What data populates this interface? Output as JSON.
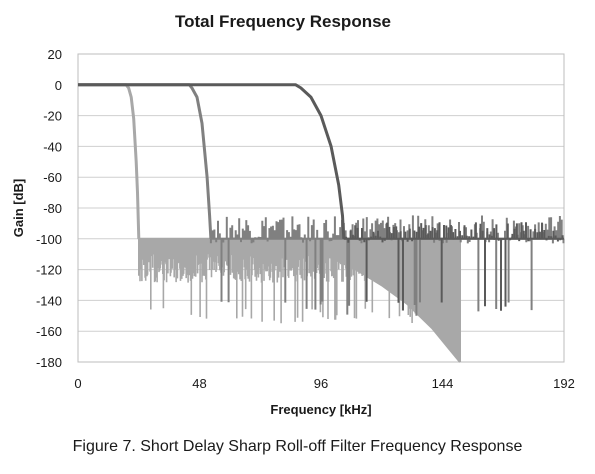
{
  "chart_data": {
    "type": "line",
    "title": "Total Frequency Response",
    "xlabel": "Frequency [kHz]",
    "ylabel": "Gain [dB]",
    "xlim": [
      0,
      192
    ],
    "ylim": [
      -180,
      20
    ],
    "x_ticks": [
      0,
      48,
      96,
      144,
      192
    ],
    "y_ticks": [
      20,
      0,
      -20,
      -40,
      -60,
      -80,
      -100,
      -120,
      -140,
      -160,
      -180
    ],
    "grid": "horizontal",
    "legend": "none",
    "series": [
      {
        "color": "#a8a8a8",
        "passband_edge_khz": 20,
        "transition_end_khz": 24,
        "stopband_start_khz": 24,
        "stopband_floor_db": -100,
        "stopband_dips_db": [
          -110,
          -145,
          -160,
          -180
        ],
        "x": [
          0,
          19,
          20,
          21,
          22,
          23,
          23.5,
          24,
          25,
          60,
          100,
          110,
          120,
          130,
          140,
          147,
          151
        ],
        "y": [
          0,
          0,
          -2,
          -8,
          -22,
          -50,
          -70,
          -100,
          -102,
          -105,
          -112,
          -120,
          -130,
          -142,
          -158,
          -172,
          -180
        ]
      },
      {
        "color": "#808080",
        "passband_edge_khz": 45,
        "transition_end_khz": 52.5,
        "stopband_start_khz": 52.5,
        "stopband_floor_db": -100,
        "stopband_dips_db": [
          -103,
          -125,
          -140,
          -150
        ],
        "x": [
          0,
          44,
          45,
          47,
          49,
          51,
          52,
          52.5,
          192
        ],
        "y": [
          0,
          0,
          -2,
          -8,
          -25,
          -60,
          -85,
          -100,
          -100
        ]
      },
      {
        "color": "#5a5a5a",
        "passband_edge_khz": 87,
        "transition_end_khz": 105,
        "stopband_start_khz": 105,
        "stopband_floor_db": -100,
        "stopband_dips_db": [
          -103,
          -120,
          -140,
          -150
        ],
        "x": [
          0,
          86,
          88,
          92,
          96,
          100,
          103,
          104.5,
          105,
          192
        ],
        "y": [
          0,
          0,
          -2,
          -8,
          -20,
          -40,
          -65,
          -85,
          -100,
          -100
        ]
      }
    ]
  },
  "caption": "Figure 7. Short Delay Sharp Roll-off Filter Frequency Response"
}
